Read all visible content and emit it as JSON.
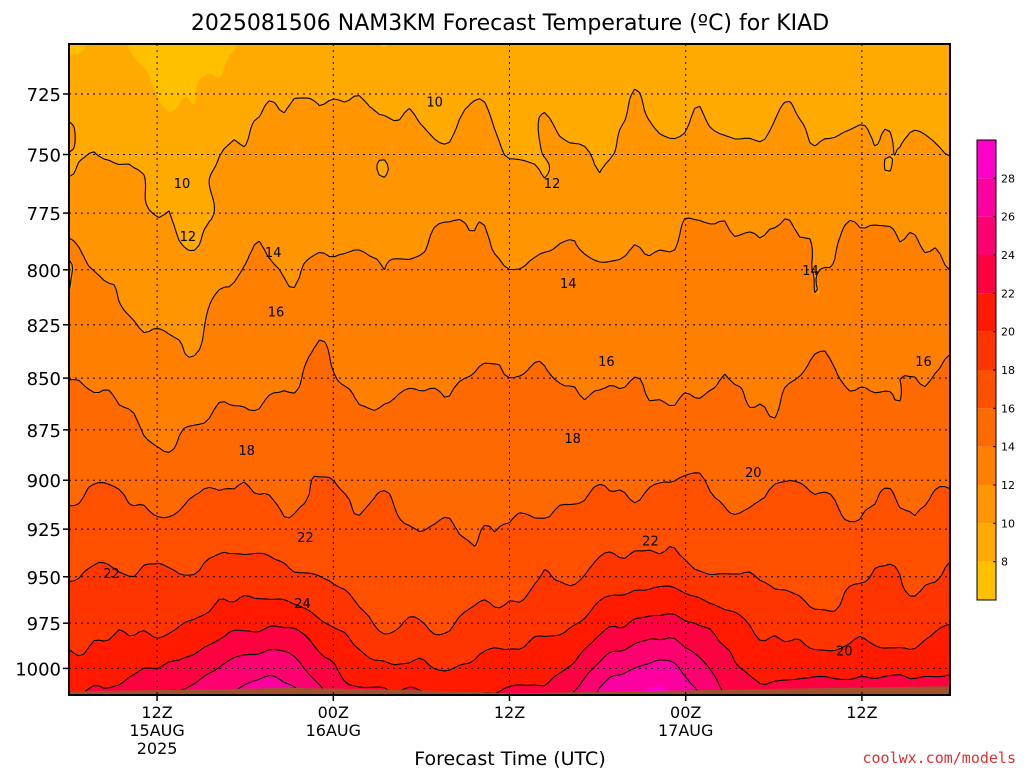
{
  "page": {
    "credit": "coolwx.com/models",
    "credit_color": "#e03030"
  },
  "chart_data": {
    "type": "heatmap",
    "title": "2025081506 NAM3KM Forecast Temperature (ºC) for KIAD",
    "xlabel": "Forecast Time (UTC)",
    "ylabel": "",
    "y_scale": "log-pressure",
    "y_inverted": true,
    "ylim": [
      1015,
      705
    ],
    "xlim": [
      0,
      60
    ],
    "grid": true,
    "x_ticks": [
      {
        "x": 6,
        "labels": [
          "12Z",
          "15AUG",
          "2025"
        ]
      },
      {
        "x": 18,
        "labels": [
          "00Z",
          "16AUG"
        ]
      },
      {
        "x": 30,
        "labels": [
          "12Z"
        ]
      },
      {
        "x": 42,
        "labels": [
          "00Z",
          "17AUG"
        ]
      },
      {
        "x": 54,
        "labels": [
          "12Z"
        ]
      }
    ],
    "y_ticks": [
      725,
      750,
      775,
      800,
      825,
      850,
      875,
      900,
      925,
      950,
      975,
      1000
    ],
    "contour_levels": [
      10,
      12,
      14,
      16,
      18,
      20,
      22,
      24,
      26
    ],
    "colorbar": {
      "levels": [
        6,
        8,
        10,
        12,
        14,
        16,
        18,
        20,
        22,
        24,
        26,
        28,
        30
      ],
      "tick_labels": [
        "8",
        "10",
        "12",
        "14",
        "16",
        "18",
        "20",
        "22",
        "24",
        "26",
        "28"
      ],
      "colors": [
        "#ffc000",
        "#ffaa00",
        "#ff9500",
        "#ff8000",
        "#ff6a00",
        "#ff5000",
        "#ff3500",
        "#ff1a00",
        "#ff0040",
        "#ff0070",
        "#ff00a0",
        "#ff00c8"
      ]
    },
    "contour_labels": [
      {
        "text": "10",
        "x": 24.9,
        "p": 728
      },
      {
        "text": "10",
        "x": 7.7,
        "p": 762
      },
      {
        "text": "12",
        "x": 32.9,
        "p": 762
      },
      {
        "text": "12",
        "x": 8.1,
        "p": 785
      },
      {
        "text": "14",
        "x": 13.9,
        "p": 792
      },
      {
        "text": "14",
        "x": 34.0,
        "p": 806
      },
      {
        "text": "14",
        "x": 50.5,
        "p": 800
      },
      {
        "text": "16",
        "x": 14.1,
        "p": 819
      },
      {
        "text": "16",
        "x": 36.6,
        "p": 842
      },
      {
        "text": "16",
        "x": 58.2,
        "p": 842
      },
      {
        "text": "18",
        "x": 12.1,
        "p": 885
      },
      {
        "text": "18",
        "x": 34.3,
        "p": 879
      },
      {
        "text": "20",
        "x": 46.6,
        "p": 896
      },
      {
        "text": "20",
        "x": 52.8,
        "p": 990
      },
      {
        "text": "22",
        "x": 16.1,
        "p": 929
      },
      {
        "text": "22",
        "x": 2.9,
        "p": 948
      },
      {
        "text": "22",
        "x": 39.6,
        "p": 931
      },
      {
        "text": "24",
        "x": 15.9,
        "p": 964
      }
    ],
    "surface": {
      "color": "#a0522d",
      "p": [
        1013,
        1012,
        1011,
        1012,
        1014,
        1013,
        1012,
        1011,
        1010
      ]
    }
  }
}
